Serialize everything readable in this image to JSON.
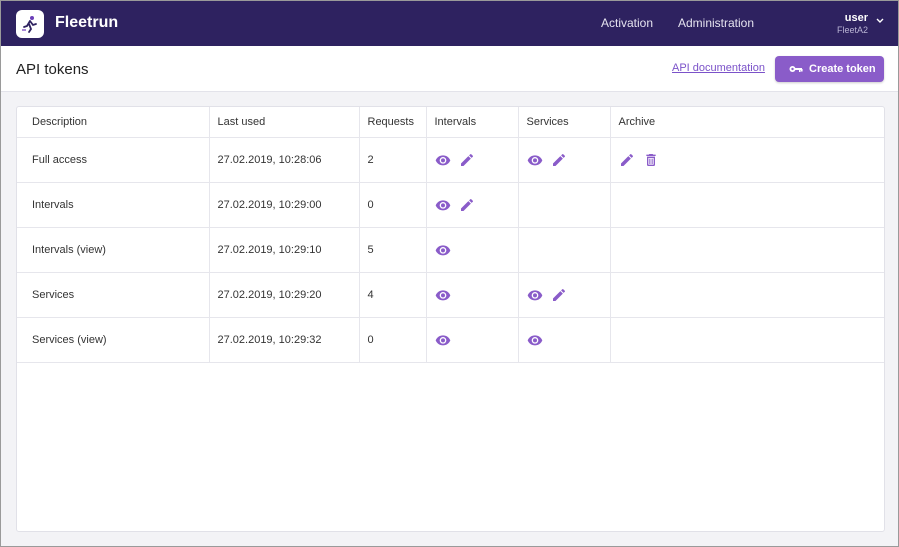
{
  "app": {
    "name": "Fleetrun"
  },
  "nav": {
    "activation": "Activation",
    "administration": "Administration"
  },
  "user": {
    "name": "user",
    "fleet": "FleetA2"
  },
  "page": {
    "title": "API tokens",
    "api_doc_label": "API documentation",
    "create_label": "Create token"
  },
  "table": {
    "headers": [
      "Description",
      "Last used",
      "Requests",
      "Intervals",
      "Services",
      "Archive"
    ],
    "rows": [
      {
        "description": "Full access",
        "last_used": "27.02.2019, 10:28:06",
        "requests": "2",
        "intervals": [
          "eye-icon",
          "pencil-icon"
        ],
        "services": [
          "eye-icon",
          "pencil-icon"
        ],
        "archive": [
          "pencil-icon",
          "trash-icon"
        ]
      },
      {
        "description": "Intervals",
        "last_used": "27.02.2019, 10:29:00",
        "requests": "0",
        "intervals": [
          "eye-icon",
          "pencil-icon"
        ],
        "services": [],
        "archive": []
      },
      {
        "description": "Intervals (view)",
        "last_used": "27.02.2019, 10:29:10",
        "requests": "5",
        "intervals": [
          "eye-icon"
        ],
        "services": [],
        "archive": []
      },
      {
        "description": "Services",
        "last_used": "27.02.2019, 10:29:20",
        "requests": "4",
        "intervals": [
          "eye-icon"
        ],
        "services": [
          "eye-icon",
          "pencil-icon"
        ],
        "archive": []
      },
      {
        "description": "Services (view)",
        "last_used": "27.02.2019, 10:29:32",
        "requests": "0",
        "intervals": [
          "eye-icon"
        ],
        "services": [
          "eye-icon"
        ],
        "archive": []
      }
    ]
  },
  "colors": {
    "topbar": "#2e2260",
    "accent": "#8a5cc9",
    "icon": "#8a5cc9"
  }
}
